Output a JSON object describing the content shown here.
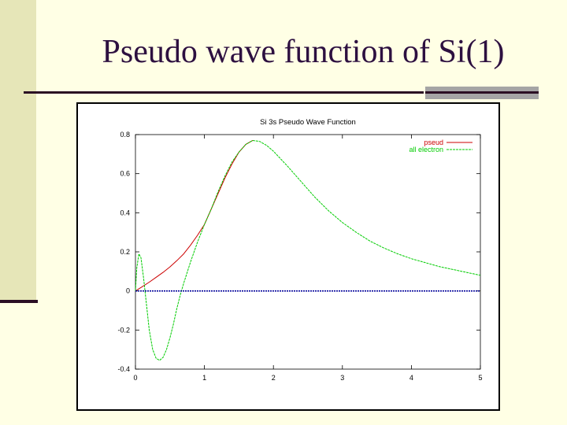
{
  "slide": {
    "title": "Pseudo wave function of Si(1)"
  },
  "colors": {
    "background": "#ffffe5",
    "sidebar": "#e6e6b8",
    "accent_dark": "#2b0f24",
    "title_text": "#2d1040",
    "pseudo": "#cc0000",
    "all_electron": "#00cc00",
    "zero_line": "#000099"
  },
  "chart_data": {
    "type": "line",
    "title": "Si 3s Pseudo Wave Function",
    "xlabel": "",
    "ylabel": "",
    "xlim": [
      0,
      5
    ],
    "ylim": [
      -0.4,
      0.8
    ],
    "x_ticks": [
      "0",
      "1",
      "2",
      "3",
      "4",
      "5"
    ],
    "y_ticks": [
      "0.8",
      "0.6",
      "0.4",
      "0.2",
      "0",
      "-0.2",
      "-0.4"
    ],
    "grid": false,
    "legend_position": "top-right",
    "series": [
      {
        "name": "pseud",
        "color": "#cc0000",
        "x": [
          0,
          0.1,
          0.2,
          0.3,
          0.4,
          0.5,
          0.6,
          0.7,
          0.8,
          0.9,
          1.0,
          1.1,
          1.2,
          1.3,
          1.4,
          1.5,
          1.6,
          1.7
        ],
        "y": [
          0,
          0.022,
          0.045,
          0.07,
          0.095,
          0.123,
          0.155,
          0.19,
          0.235,
          0.285,
          0.34,
          0.42,
          0.5,
          0.58,
          0.65,
          0.71,
          0.75,
          0.77
        ]
      },
      {
        "name": "all electron",
        "color": "#00cc00",
        "x": [
          0,
          0.02,
          0.05,
          0.08,
          0.12,
          0.16,
          0.2,
          0.25,
          0.3,
          0.35,
          0.4,
          0.45,
          0.5,
          0.55,
          0.6,
          0.65,
          0.7,
          0.8,
          0.9,
          1.0,
          1.1,
          1.2,
          1.3,
          1.4,
          1.5,
          1.6,
          1.7,
          1.8,
          1.9,
          2.0,
          2.2,
          2.4,
          2.6,
          2.8,
          3.0,
          3.2,
          3.4,
          3.6,
          3.8,
          4.0,
          4.2,
          4.4,
          4.6,
          4.8,
          5.0
        ],
        "y": [
          0,
          0.12,
          0.19,
          0.17,
          0.06,
          -0.07,
          -0.2,
          -0.3,
          -0.345,
          -0.355,
          -0.34,
          -0.3,
          -0.24,
          -0.17,
          -0.09,
          -0.02,
          0.04,
          0.15,
          0.25,
          0.34,
          0.42,
          0.51,
          0.59,
          0.66,
          0.71,
          0.75,
          0.77,
          0.765,
          0.745,
          0.715,
          0.64,
          0.56,
          0.48,
          0.41,
          0.35,
          0.3,
          0.255,
          0.22,
          0.19,
          0.165,
          0.145,
          0.125,
          0.11,
          0.095,
          0.08
        ]
      },
      {
        "name": "",
        "color": "#000099",
        "x": [
          0,
          5
        ],
        "y": [
          0,
          0
        ]
      }
    ]
  }
}
